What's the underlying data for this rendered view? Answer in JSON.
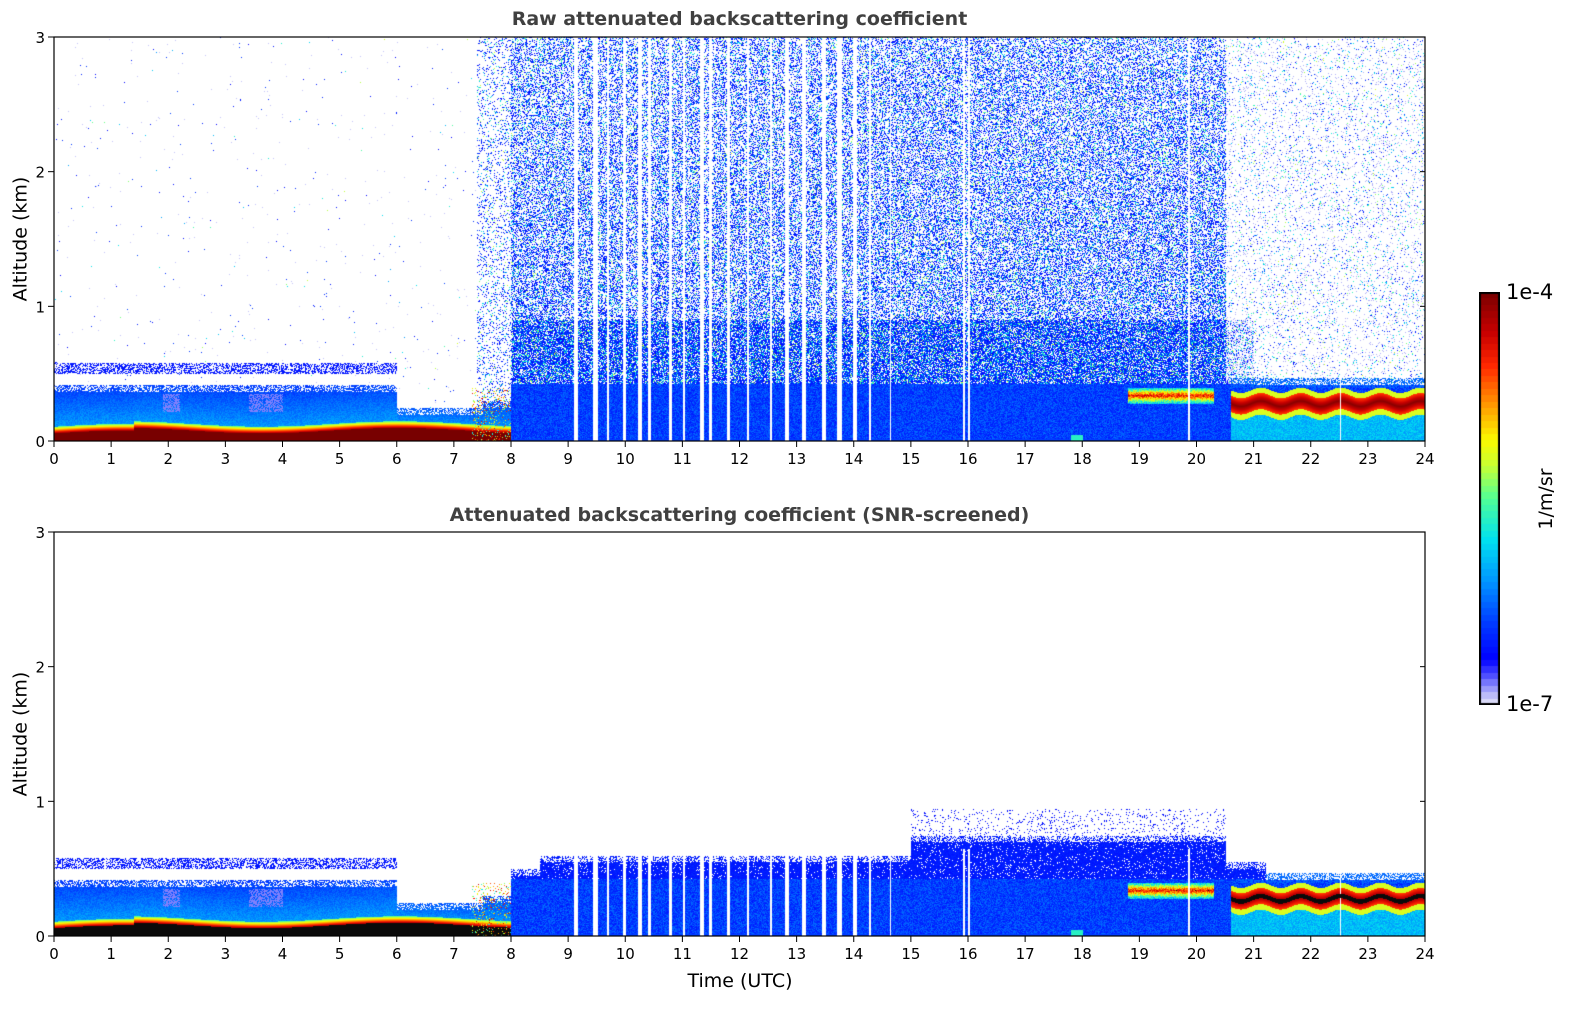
{
  "chart_data": {
    "type": "heatmap",
    "panels": [
      {
        "title": "Raw attenuated backscattering coefficient",
        "xlabel": "",
        "ylabel": "Altitude (km)",
        "xlim": [
          0,
          24
        ],
        "ylim": [
          0,
          3
        ],
        "xticks": [
          "0",
          "1",
          "2",
          "3",
          "4",
          "5",
          "6",
          "7",
          "8",
          "9",
          "10",
          "11",
          "12",
          "13",
          "14",
          "15",
          "16",
          "17",
          "18",
          "19",
          "20",
          "21",
          "22",
          "23",
          "24"
        ],
        "yticks": [
          "0",
          "1",
          "2",
          "3"
        ],
        "screened": false
      },
      {
        "title": "Attenuated backscattering coefficient (SNR-screened)",
        "xlabel": "Time (UTC)",
        "ylabel": "Altitude (km)",
        "xlim": [
          0,
          24
        ],
        "ylim": [
          0,
          3
        ],
        "xticks": [
          "0",
          "1",
          "2",
          "3",
          "4",
          "5",
          "6",
          "7",
          "8",
          "9",
          "10",
          "11",
          "12",
          "13",
          "14",
          "15",
          "16",
          "17",
          "18",
          "19",
          "20",
          "21",
          "22",
          "23",
          "24"
        ],
        "yticks": [
          "0",
          "1",
          "2",
          "3"
        ],
        "screened": true
      }
    ],
    "colorbar": {
      "label": "1/m/sr",
      "min_label": "1e-7",
      "max_label": "1e-4",
      "range": [
        1e-07,
        0.0001
      ],
      "scale": "log",
      "colormap": "jet"
    },
    "features": {
      "surface_layer_top_km": 0.1,
      "boundary_layer_top_km_night": 0.42,
      "elevated_layer_km": [
        0.5,
        0.58
      ],
      "cloud_band_late_km": [
        0.2,
        0.35
      ]
    }
  }
}
